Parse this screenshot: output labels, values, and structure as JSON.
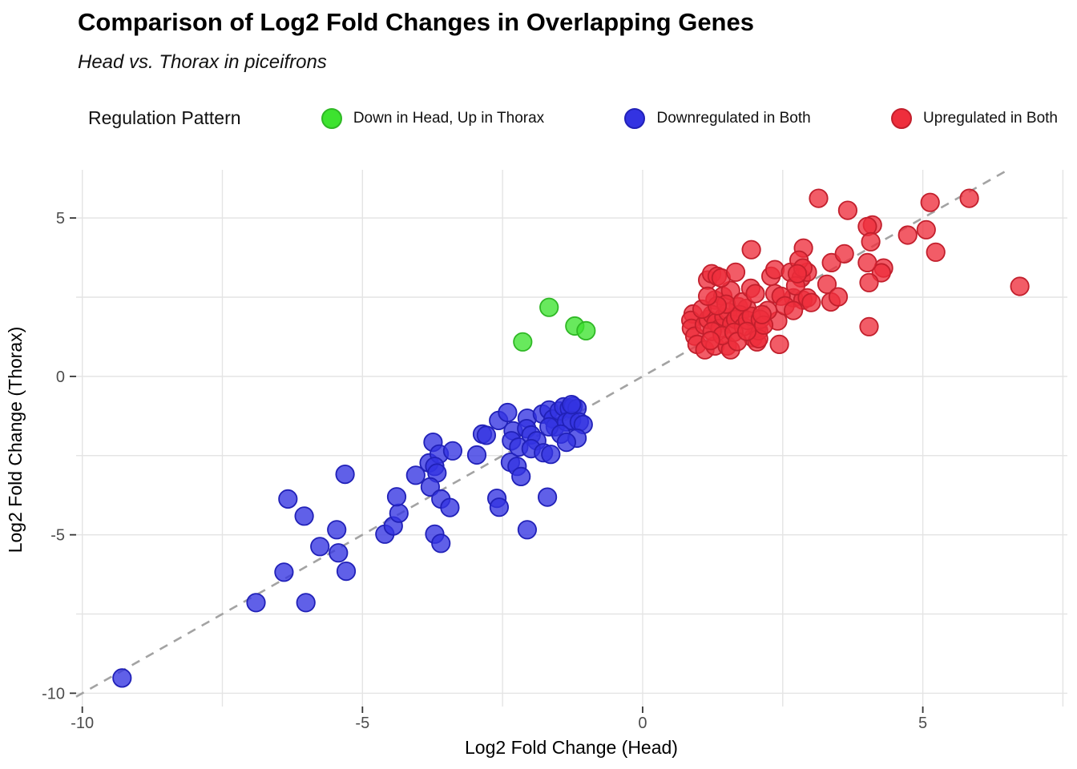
{
  "chart_data": {
    "type": "scatter",
    "title": "Comparison of Log2 Fold Changes in Overlapping Genes",
    "subtitle": "Head vs. Thorax in piceifrons",
    "xlabel": "Log2 Fold Change (Head)",
    "ylabel": "Log2 Fold Change (Thorax)",
    "legend_title": "Regulation Pattern",
    "legend_position": "top",
    "xlim": [
      -10.11,
      7.58
    ],
    "ylim": [
      -10.42,
      6.52
    ],
    "x_ticks": [
      -10,
      -5,
      0,
      5
    ],
    "y_ticks": [
      5,
      0,
      -5,
      -10
    ],
    "grid": true,
    "grid_interval": 2.5,
    "grid_color": "#e4e4e4",
    "identity_line": {
      "equation": "y = x",
      "style": "dashed",
      "color": "#a3a3a3"
    },
    "series": [
      {
        "name": "Down in Head, Up in Thorax",
        "color": "#3DE32F",
        "border": "#2FB825",
        "points": [
          [
            -1.67,
            2.18
          ],
          [
            -2.14,
            1.09
          ],
          [
            -1.21,
            1.59
          ],
          [
            -1.01,
            1.44
          ]
        ]
      },
      {
        "name": "Downregulated in Both",
        "color": "#3333E2",
        "border": "#2121B8",
        "points": [
          [
            -9.29,
            -9.52
          ],
          [
            -6.9,
            -7.14
          ],
          [
            -6.01,
            -7.14
          ],
          [
            -6.4,
            -6.18
          ],
          [
            -6.33,
            -3.87
          ],
          [
            -6.04,
            -4.41
          ],
          [
            -5.46,
            -4.84
          ],
          [
            -5.76,
            -5.37
          ],
          [
            -5.43,
            -5.57
          ],
          [
            -5.31,
            -3.09
          ],
          [
            -5.29,
            -6.15
          ],
          [
            -4.6,
            -4.98
          ],
          [
            -4.45,
            -4.72
          ],
          [
            -4.35,
            -4.32
          ],
          [
            -4.39,
            -3.8
          ],
          [
            -4.05,
            -3.12
          ],
          [
            -3.81,
            -2.73
          ],
          [
            -3.74,
            -2.08
          ],
          [
            -3.63,
            -2.45
          ],
          [
            -3.71,
            -2.84
          ],
          [
            -3.67,
            -3.05
          ],
          [
            -3.79,
            -3.49
          ],
          [
            -3.6,
            -3.87
          ],
          [
            -3.44,
            -4.14
          ],
          [
            -3.71,
            -4.98
          ],
          [
            -3.6,
            -5.27
          ],
          [
            -3.39,
            -2.35
          ],
          [
            -2.96,
            -2.48
          ],
          [
            -2.86,
            -1.82
          ],
          [
            -2.79,
            -1.86
          ],
          [
            -2.6,
            -3.85
          ],
          [
            -2.56,
            -4.13
          ],
          [
            -2.06,
            -4.84
          ],
          [
            -1.7,
            -3.81
          ],
          [
            -2.57,
            -1.39
          ],
          [
            -2.41,
            -1.14
          ],
          [
            -2.31,
            -1.72
          ],
          [
            -2.34,
            -2.03
          ],
          [
            -2.36,
            -2.71
          ],
          [
            -2.24,
            -2.84
          ],
          [
            -2.17,
            -3.16
          ],
          [
            -2.21,
            -2.23
          ],
          [
            -2.06,
            -1.32
          ],
          [
            -2.07,
            -1.65
          ],
          [
            -1.99,
            -1.85
          ],
          [
            -1.89,
            -2.03
          ],
          [
            -1.99,
            -2.28
          ],
          [
            -1.79,
            -1.19
          ],
          [
            -1.67,
            -1.06
          ],
          [
            -1.6,
            -1.34
          ],
          [
            -1.56,
            -1.59
          ],
          [
            -1.67,
            -1.59
          ],
          [
            -1.77,
            -2.41
          ],
          [
            -1.64,
            -2.46
          ],
          [
            -1.49,
            -1.09
          ],
          [
            -1.41,
            -0.96
          ],
          [
            -1.31,
            -1.01
          ],
          [
            -1.24,
            -0.94
          ],
          [
            -1.17,
            -1.01
          ],
          [
            -1.36,
            -1.44
          ],
          [
            -1.27,
            -1.39
          ],
          [
            -1.13,
            -1.44
          ],
          [
            -1.06,
            -1.52
          ],
          [
            -1.46,
            -1.82
          ],
          [
            -1.17,
            -1.95
          ],
          [
            -1.36,
            -2.08
          ],
          [
            -1.27,
            -0.89
          ]
        ]
      },
      {
        "name": "Upregulated in Both",
        "color": "#EE2E3C",
        "border": "#C21F2C",
        "points": [
          [
            0.9,
            1.97
          ],
          [
            0.86,
            1.77
          ],
          [
            0.87,
            1.52
          ],
          [
            0.93,
            1.27
          ],
          [
            0.97,
            1.01
          ],
          [
            1.11,
            0.84
          ],
          [
            1.29,
            0.96
          ],
          [
            1.51,
            0.96
          ],
          [
            1.57,
            0.84
          ],
          [
            1.97,
            1.22
          ],
          [
            2.04,
            1.09
          ],
          [
            2.04,
            1.52
          ],
          [
            2.07,
            1.44
          ],
          [
            2.07,
            1.19
          ],
          [
            2.44,
            1.01
          ],
          [
            2.41,
            1.75
          ],
          [
            1.29,
            2.41
          ],
          [
            1.43,
            2.53
          ],
          [
            1.57,
            2.71
          ],
          [
            1.71,
            2.2
          ],
          [
            1.86,
            2.15
          ],
          [
            2.23,
            2.08
          ],
          [
            2.36,
            2.61
          ],
          [
            2.69,
            2.48
          ],
          [
            2.86,
            2.41
          ],
          [
            1.1,
            1.62
          ],
          [
            1.17,
            1.8
          ],
          [
            1.24,
            1.95
          ],
          [
            1.31,
            1.7
          ],
          [
            1.38,
            1.52
          ],
          [
            1.45,
            1.88
          ],
          [
            1.52,
            2.03
          ],
          [
            1.59,
            1.65
          ],
          [
            1.66,
            1.8
          ],
          [
            1.73,
            1.95
          ],
          [
            1.8,
            1.57
          ],
          [
            1.87,
            1.77
          ],
          [
            1.94,
            1.9
          ],
          [
            1.24,
            1.42
          ],
          [
            1.42,
            1.29
          ],
          [
            1.63,
            1.39
          ],
          [
            1.06,
            2.12
          ],
          [
            1.49,
            2.28
          ],
          [
            1.33,
            2.23
          ],
          [
            1.78,
            2.35
          ],
          [
            1.21,
            1.13
          ],
          [
            1.69,
            1.1
          ],
          [
            1.86,
            1.42
          ],
          [
            2.1,
            1.8
          ],
          [
            2.16,
            1.62
          ],
          [
            2.13,
            1.95
          ],
          [
            1.16,
            3.04
          ],
          [
            1.23,
            3.24
          ],
          [
            1.33,
            3.16
          ],
          [
            1.4,
            3.11
          ],
          [
            1.66,
            3.29
          ],
          [
            1.94,
            4.0
          ],
          [
            2.29,
            3.16
          ],
          [
            2.36,
            3.37
          ],
          [
            2.64,
            3.29
          ],
          [
            2.83,
            3.11
          ],
          [
            2.94,
            3.29
          ],
          [
            2.73,
            2.86
          ],
          [
            2.87,
            4.05
          ],
          [
            2.79,
            3.67
          ],
          [
            2.86,
            3.42
          ],
          [
            2.76,
            3.24
          ],
          [
            3.37,
            3.59
          ],
          [
            3.6,
            3.87
          ],
          [
            3.29,
            2.91
          ],
          [
            3.36,
            2.35
          ],
          [
            3.49,
            2.51
          ],
          [
            1.93,
            2.78
          ],
          [
            2.01,
            2.61
          ],
          [
            2.47,
            2.53
          ],
          [
            2.94,
            2.48
          ],
          [
            3.01,
            2.33
          ],
          [
            2.54,
            2.23
          ],
          [
            2.69,
            2.08
          ],
          [
            1.16,
            2.53
          ],
          [
            3.14,
            5.62
          ],
          [
            3.66,
            5.24
          ],
          [
            4.1,
            4.78
          ],
          [
            5.13,
            5.49
          ],
          [
            5.83,
            5.62
          ],
          [
            4.73,
            4.46
          ],
          [
            5.06,
            4.63
          ],
          [
            5.23,
            3.92
          ],
          [
            4.3,
            3.42
          ],
          [
            4.26,
            3.27
          ],
          [
            4.01,
            4.73
          ],
          [
            4.07,
            4.25
          ],
          [
            4.01,
            3.59
          ],
          [
            4.04,
            2.96
          ],
          [
            6.73,
            2.84
          ],
          [
            4.04,
            1.57
          ]
        ]
      }
    ]
  }
}
